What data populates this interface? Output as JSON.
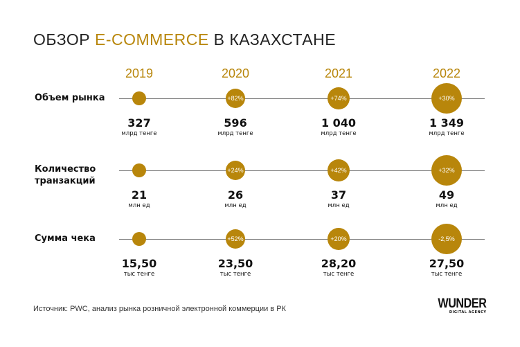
{
  "title": {
    "part1": "ОБЗОР ",
    "accent": "E-COMMERCE",
    "part2": " В КАЗАХСТАНЕ"
  },
  "colors": {
    "accent": "#b8860b",
    "line": "#777777",
    "text": "#111111"
  },
  "chart_data": {
    "type": "bubble-timeline",
    "years": [
      "2019",
      "2020",
      "2021",
      "2022"
    ],
    "rows": [
      {
        "label": "Объем рынка",
        "values": [
          "327",
          "596",
          "1 040",
          "1 349"
        ],
        "unit": "млрд тенге",
        "changes": [
          "",
          "+82%",
          "+74%",
          "+30%"
        ]
      },
      {
        "label": "Количество транзакций",
        "values": [
          "21",
          "26",
          "37",
          "49"
        ],
        "unit": "млн ед",
        "changes": [
          "",
          "+24%",
          "+42%",
          "+32%"
        ]
      },
      {
        "label": "Сумма чека",
        "values": [
          "15,50",
          "23,50",
          "28,20",
          "27,50"
        ],
        "unit": "тыс тенге",
        "changes": [
          "",
          "+52%",
          "+20%",
          "-2,5%"
        ]
      }
    ]
  },
  "footer": {
    "source": "Источник: PWC, анализ рынка розничной электронной коммерции в РК",
    "logo": "WUNDER",
    "logo_sub": "DIGITAL AGENCY"
  }
}
